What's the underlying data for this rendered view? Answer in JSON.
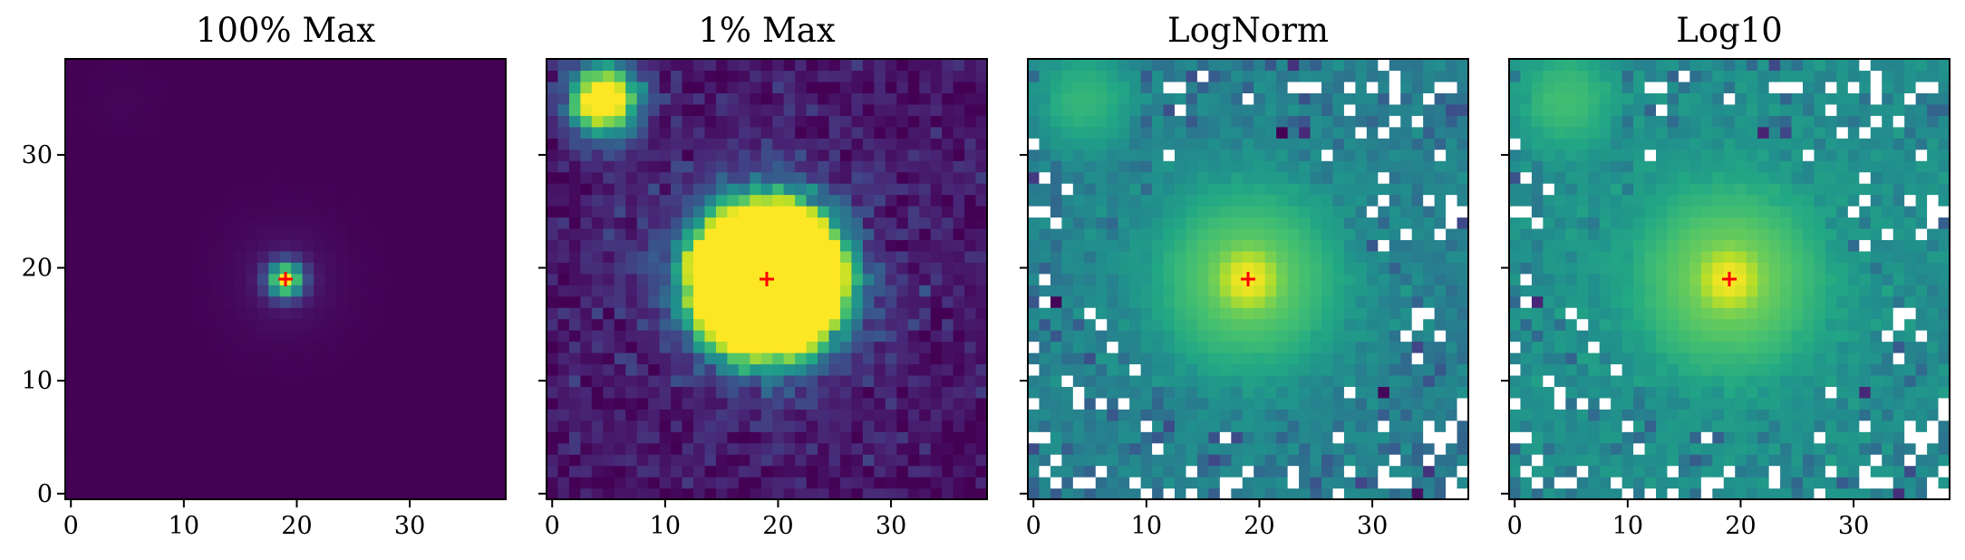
{
  "figure": {
    "type": "image-grid",
    "colormap": "viridis",
    "grid_size": 39,
    "marker_color": "#ff0000"
  },
  "chart_data": [
    {
      "type": "heatmap",
      "title": "100% Max",
      "scale": "linear",
      "vmax_fraction": 1.0,
      "xlim": [
        -0.5,
        38.5
      ],
      "ylim": [
        -0.5,
        38.5
      ],
      "x_ticks": [
        0,
        10,
        20,
        30
      ],
      "x_tick_labels": [
        "0",
        "10",
        "20",
        "30"
      ],
      "y_ticks": [
        0,
        10,
        20,
        30
      ],
      "y_tick_labels": [
        "0",
        "10",
        "20",
        "30"
      ],
      "show_y_tick_labels": true,
      "center_marker": {
        "x": 19,
        "y": 19,
        "symbol": "+"
      },
      "sources": [
        {
          "x": 19,
          "y": 19,
          "amplitude": 1.0,
          "sigma": 1.1
        },
        {
          "x": 19,
          "y": 19,
          "amplitude": 0.06,
          "sigma": 3.5
        },
        {
          "x": 4.5,
          "y": 35,
          "amplitude": 0.013,
          "sigma": 2.2
        }
      ]
    },
    {
      "type": "heatmap",
      "title": "1% Max",
      "scale": "linear",
      "vmax_fraction": 0.01,
      "xlim": [
        -0.5,
        38.5
      ],
      "ylim": [
        -0.5,
        38.5
      ],
      "x_ticks": [
        0,
        10,
        20,
        30
      ],
      "x_tick_labels": [
        "0",
        "10",
        "20",
        "30"
      ],
      "y_ticks": [
        0,
        10,
        20,
        30
      ],
      "y_tick_labels": [
        "0",
        "10",
        "20",
        "30"
      ],
      "show_y_tick_labels": false,
      "center_marker": {
        "x": 19,
        "y": 19,
        "symbol": "+"
      }
    },
    {
      "type": "heatmap",
      "title": "LogNorm",
      "scale": "log",
      "xlim": [
        -0.5,
        38.5
      ],
      "ylim": [
        -0.5,
        38.5
      ],
      "x_ticks": [
        0,
        10,
        20,
        30
      ],
      "x_tick_labels": [
        "0",
        "10",
        "20",
        "30"
      ],
      "y_ticks": [
        0,
        10,
        20,
        30
      ],
      "y_tick_labels": [
        "0",
        "10",
        "20",
        "30"
      ],
      "show_y_tick_labels": false,
      "center_marker": {
        "x": 19,
        "y": 19,
        "symbol": "+"
      },
      "masked_color": "#ffffff"
    },
    {
      "type": "heatmap",
      "title": "Log10",
      "scale": "log10",
      "xlim": [
        -0.5,
        38.5
      ],
      "ylim": [
        -0.5,
        38.5
      ],
      "x_ticks": [
        0,
        10,
        20,
        30
      ],
      "x_tick_labels": [
        "0",
        "10",
        "20",
        "30"
      ],
      "y_ticks": [
        0,
        10,
        20,
        30
      ],
      "y_tick_labels": [
        "0",
        "10",
        "20",
        "30"
      ],
      "show_y_tick_labels": false,
      "center_marker": {
        "x": 19,
        "y": 19,
        "symbol": "+"
      },
      "masked_color": "#ffffff"
    }
  ]
}
